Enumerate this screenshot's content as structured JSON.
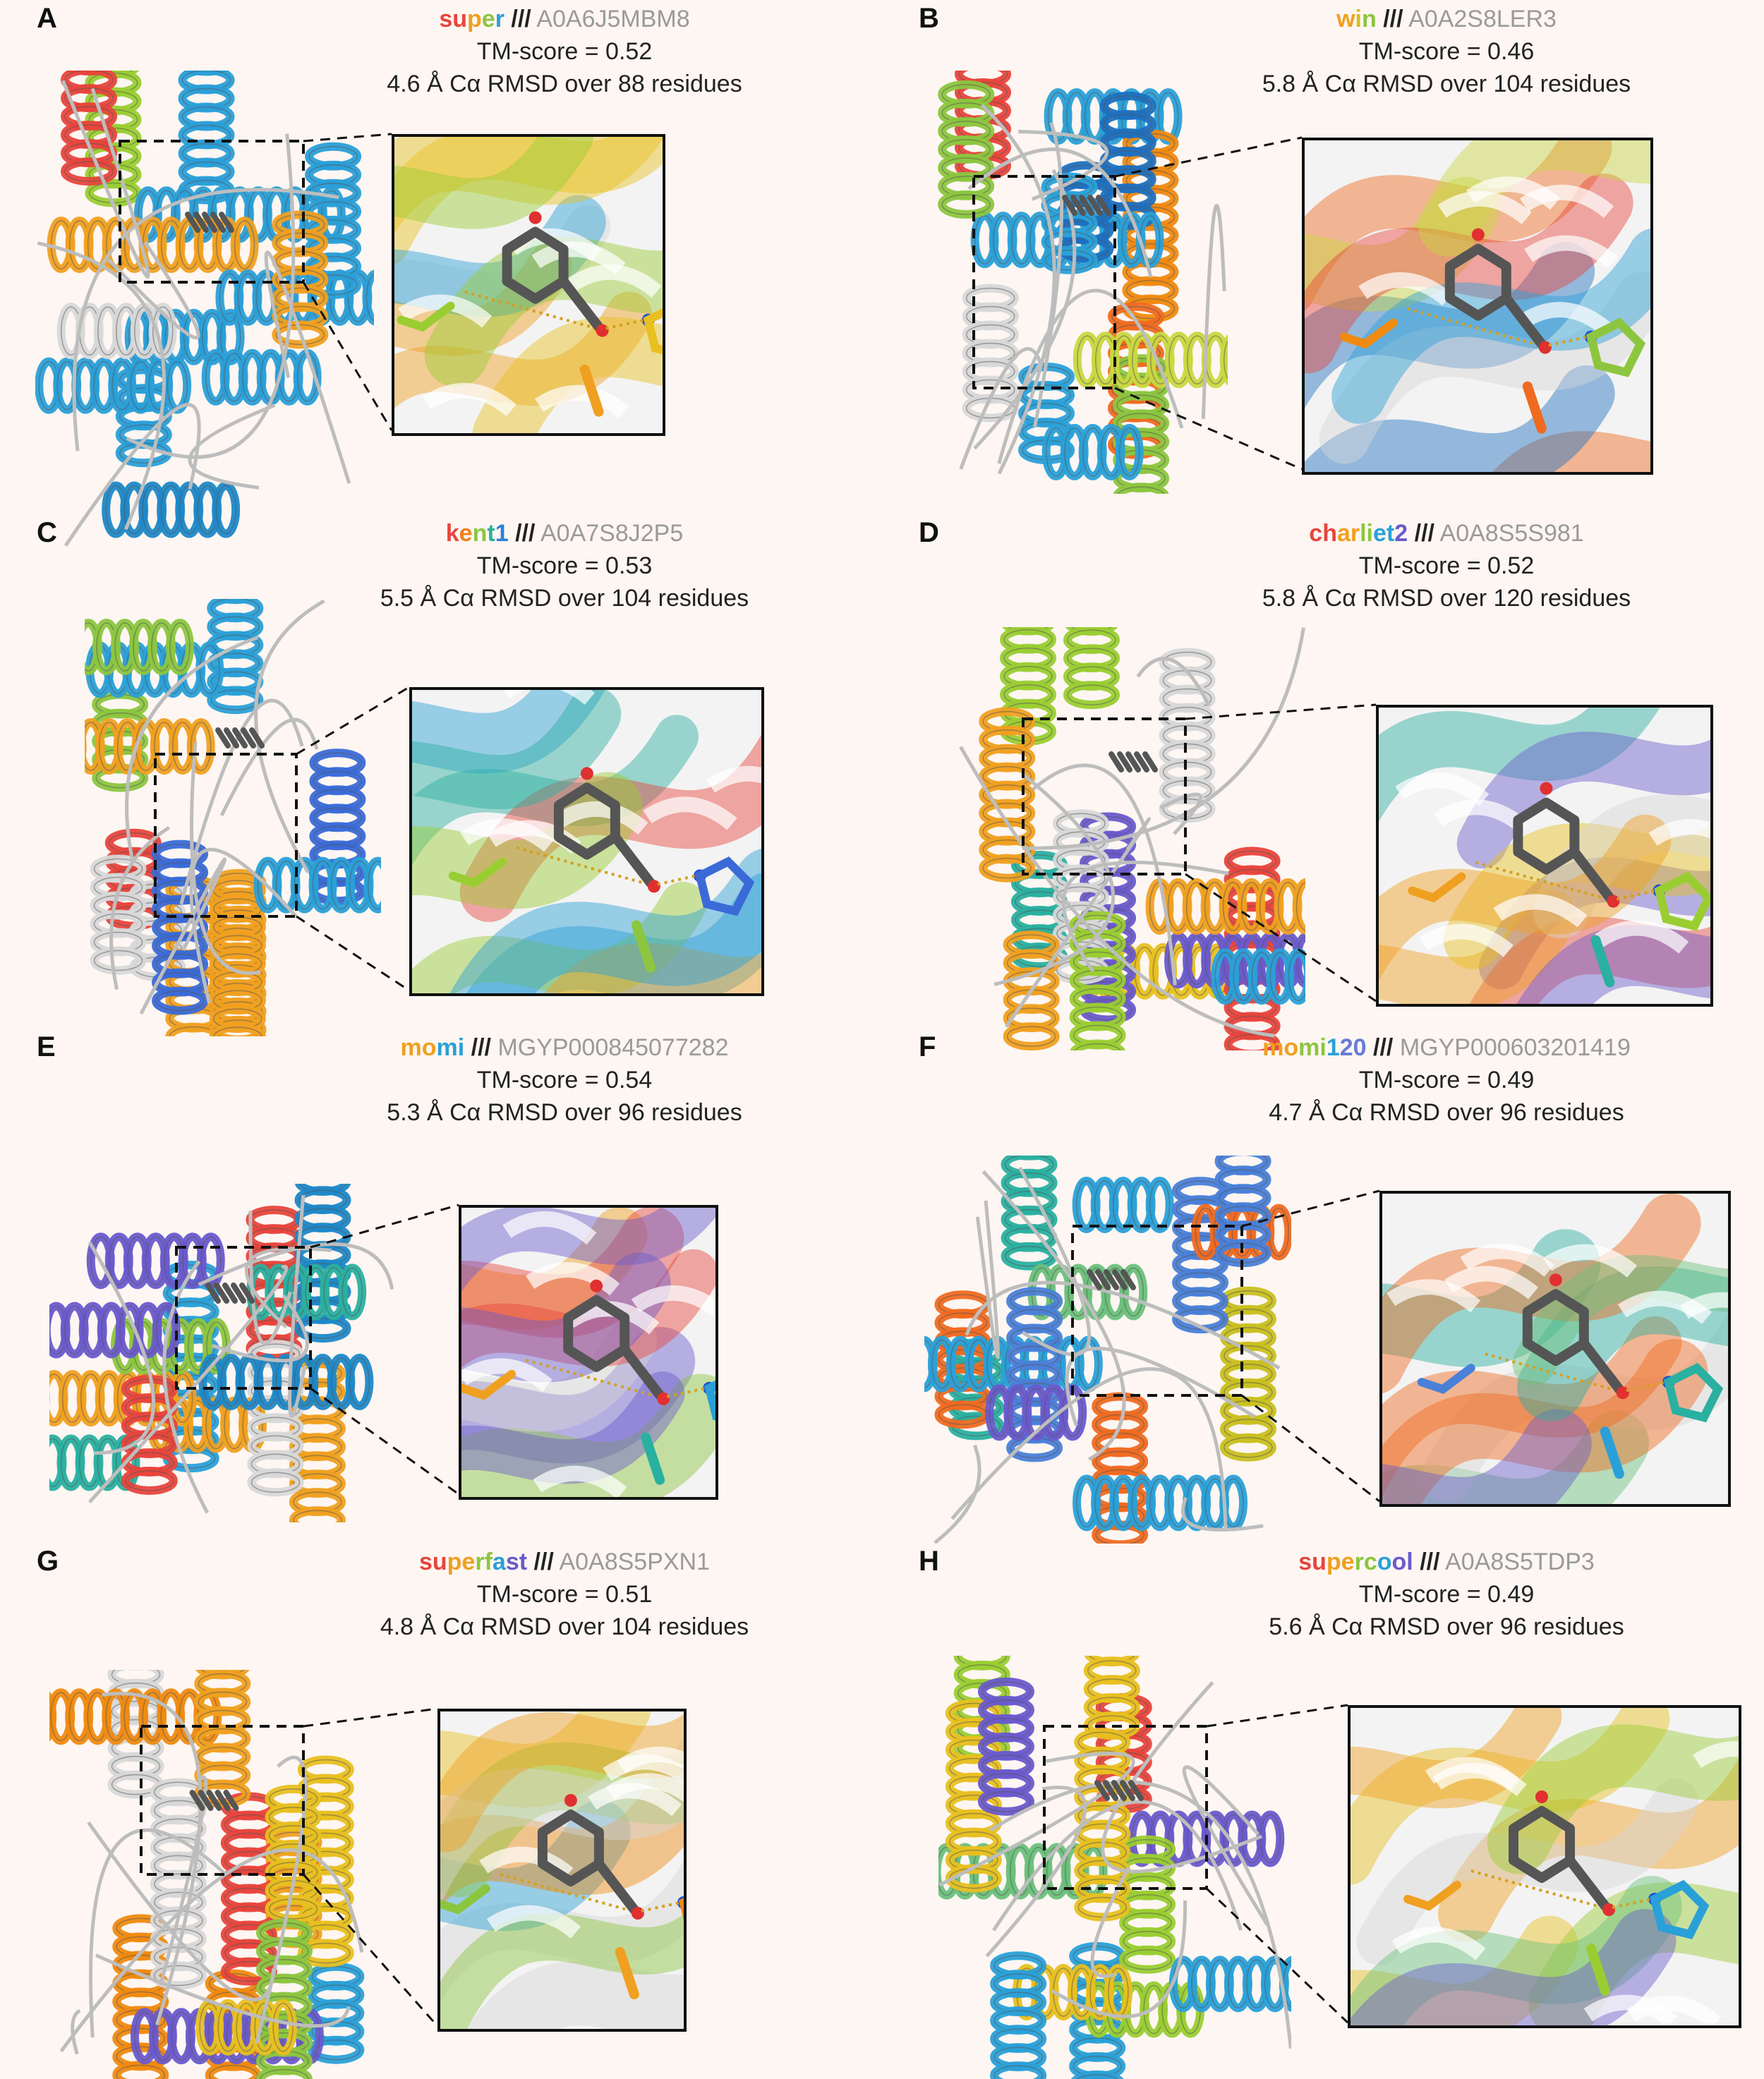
{
  "panels": [
    {
      "letter": "A",
      "name_parts": [
        {
          "t": "su",
          "c": "#e8453c"
        },
        {
          "t": "p",
          "c": "#f0a020"
        },
        {
          "t": "e",
          "c": "#8cc63f"
        },
        {
          "t": "r",
          "c": "#2aa0d8"
        }
      ],
      "separator": "///",
      "accession": "A0A6J5MBM8",
      "tm_score": "TM-score = 0.52",
      "rmsd": "4.6 Å Cα RMSD over 88 residues"
    },
    {
      "letter": "B",
      "name_parts": [
        {
          "t": "w",
          "c": "#f0a020"
        },
        {
          "t": "i",
          "c": "#d4c020"
        },
        {
          "t": "n",
          "c": "#8cc63f"
        }
      ],
      "separator": "///",
      "accession": "A0A2S8LER3",
      "tm_score": "TM-score = 0.46",
      "rmsd": "5.8 Å Cα RMSD over 104 residues"
    },
    {
      "letter": "C",
      "name_parts": [
        {
          "t": "k",
          "c": "#e8453c"
        },
        {
          "t": "e",
          "c": "#f08020"
        },
        {
          "t": "n",
          "c": "#8cc63f"
        },
        {
          "t": "t",
          "c": "#2ab0a0"
        },
        {
          "t": "1",
          "c": "#2a80d8"
        }
      ],
      "separator": "///",
      "accession": "A0A7S8J2P5",
      "tm_score": "TM-score = 0.53",
      "rmsd": "5.5 Å Cα RMSD over 104 residues"
    },
    {
      "letter": "D",
      "name_parts": [
        {
          "t": "ch",
          "c": "#e8453c"
        },
        {
          "t": "ar",
          "c": "#f0a020"
        },
        {
          "t": "li",
          "c": "#8cc63f"
        },
        {
          "t": "et",
          "c": "#2aa0d8"
        },
        {
          "t": "2",
          "c": "#6a5acd"
        }
      ],
      "separator": "///",
      "accession": "A0A8S5S981",
      "tm_score": "TM-score = 0.52",
      "rmsd": "5.8 Å Cα RMSD over 120 residues"
    },
    {
      "letter": "E",
      "name_parts": [
        {
          "t": "mo",
          "c": "#f0a020"
        },
        {
          "t": "mi",
          "c": "#2aa0d8"
        }
      ],
      "separator": "///",
      "accession": "MGYP000845077282",
      "tm_score": "TM-score = 0.54",
      "rmsd": "5.3 Å Cα RMSD over 96 residues"
    },
    {
      "letter": "F",
      "name_parts": [
        {
          "t": "mo",
          "c": "#f0a020"
        },
        {
          "t": "mi",
          "c": "#8cc63f"
        },
        {
          "t": "1",
          "c": "#2aa0d8"
        },
        {
          "t": "20",
          "c": "#6a7ad8"
        }
      ],
      "separator": "///",
      "accession": "MGYP000603201419",
      "tm_score": "TM-score = 0.49",
      "rmsd": "4.7 Å Cα RMSD over 96 residues"
    },
    {
      "letter": "G",
      "name_parts": [
        {
          "t": "su",
          "c": "#e8453c"
        },
        {
          "t": "pe",
          "c": "#f0a020"
        },
        {
          "t": "rf",
          "c": "#8cc63f"
        },
        {
          "t": "a",
          "c": "#2aa0d8"
        },
        {
          "t": "st",
          "c": "#6a5acd"
        }
      ],
      "separator": "///",
      "accession": "A0A8S5PXN1",
      "tm_score": "TM-score = 0.51",
      "rmsd": "4.8 Å Cα RMSD over 104 residues"
    },
    {
      "letter": "H",
      "name_parts": [
        {
          "t": "su",
          "c": "#e8453c"
        },
        {
          "t": "pe",
          "c": "#f0a020"
        },
        {
          "t": "rc",
          "c": "#8cc63f"
        },
        {
          "t": "o",
          "c": "#2aa0d8"
        },
        {
          "t": "ol",
          "c": "#6a5acd"
        }
      ],
      "separator": "///",
      "accession": "A0A8S5TDP3",
      "tm_score": "TM-score = 0.49",
      "rmsd": "5.6 Å Cα RMSD over 96 residues"
    }
  ]
}
